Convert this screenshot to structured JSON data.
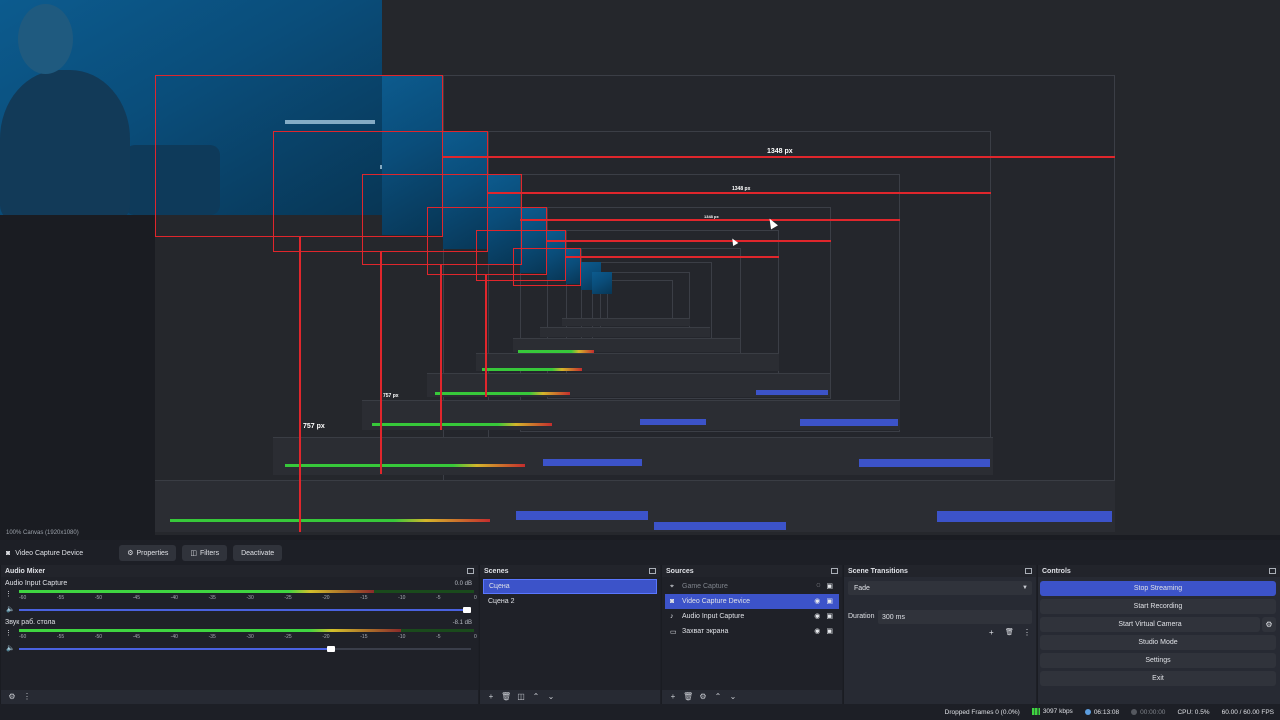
{
  "preview": {
    "measure_labels": [
      "1348 px",
      "1348 px",
      "1348 px",
      "757 px",
      "757 px"
    ],
    "canvas_info": "100%  Canvas (1920x1080)"
  },
  "source_toolbar": {
    "source_name": "Video Capture Device",
    "properties_label": "Properties",
    "filters_label": "Filters",
    "deactivate_label": "Deactivate"
  },
  "audio_mixer": {
    "title": "Audio Mixer",
    "ticks": [
      "-60",
      "-55",
      "-50",
      "-45",
      "-40",
      "-35",
      "-30",
      "-25",
      "-20",
      "-15",
      "-10",
      "-5",
      "0"
    ],
    "channels": [
      {
        "name": "Audio Input Capture",
        "db": "0.0 dB",
        "level_percent": 78,
        "volume_percent": 100
      },
      {
        "name": "Звук раб. стола",
        "db": "-8.1 dB",
        "level_percent": 84,
        "volume_percent": 70
      }
    ]
  },
  "scenes": {
    "title": "Scenes",
    "items": [
      "Сцена",
      "Сцена 2"
    ]
  },
  "sources": {
    "title": "Sources",
    "items": [
      {
        "name": "Game Capture",
        "icon": "gamepad-icon"
      },
      {
        "name": "Video Capture Device",
        "icon": "camera-icon"
      },
      {
        "name": "Audio Input Capture",
        "icon": "microphone-icon"
      },
      {
        "name": "Захват экрана",
        "icon": "monitor-icon"
      }
    ]
  },
  "transitions": {
    "title": "Scene Transitions",
    "selected": "Fade",
    "duration_label": "Duration",
    "duration_value": "300 ms"
  },
  "controls": {
    "title": "Controls",
    "stop_streaming": "Stop Streaming",
    "start_recording": "Start Recording",
    "start_virtual_camera": "Start Virtual Camera",
    "studio_mode": "Studio Mode",
    "settings": "Settings",
    "exit": "Exit"
  },
  "statusbar": {
    "dropped_frames": "Dropped Frames 0 (0.0%)",
    "bitrate": "3097 kbps",
    "stream_time": "06:13:08",
    "record_time": "00:00:00",
    "cpu": "CPU: 0.5%",
    "fps": "60.00 / 60.00 FPS"
  },
  "colors": {
    "accent": "#3c53c9",
    "measure_red": "#e0262c",
    "meter_green": "#3fd541"
  }
}
